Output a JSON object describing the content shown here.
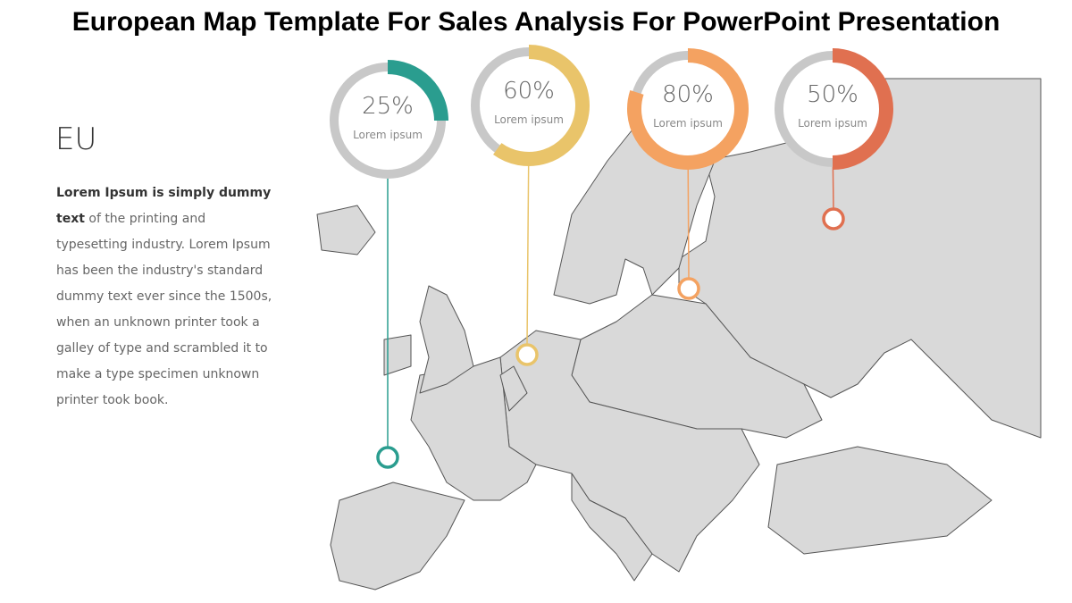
{
  "header": {
    "title": "European Map Template For Sales Analysis For PowerPoint Presentation"
  },
  "sidebar": {
    "heading": "EU",
    "intro": "Lorem Ipsum is simply dummy text",
    "body": " of the printing and typesetting industry. Lorem Ipsum has been the industry's standard dummy text ever since the 1500s, when an unknown printer took a galley of type and scrambled it to make a type specimen unknown printer took book."
  },
  "gauges": [
    {
      "value": 25,
      "value_label": "25%",
      "label": "Lorem ipsum",
      "color": "#2a9d8f"
    },
    {
      "value": 60,
      "value_label": "60%",
      "label": "Lorem ipsum",
      "color": "#e9c46a"
    },
    {
      "value": 80,
      "value_label": "80%",
      "label": "Lorem ipsum",
      "color": "#f4a261"
    },
    {
      "value": 50,
      "value_label": "50%",
      "label": "Lorem ipsum",
      "color": "#e07050"
    }
  ]
}
